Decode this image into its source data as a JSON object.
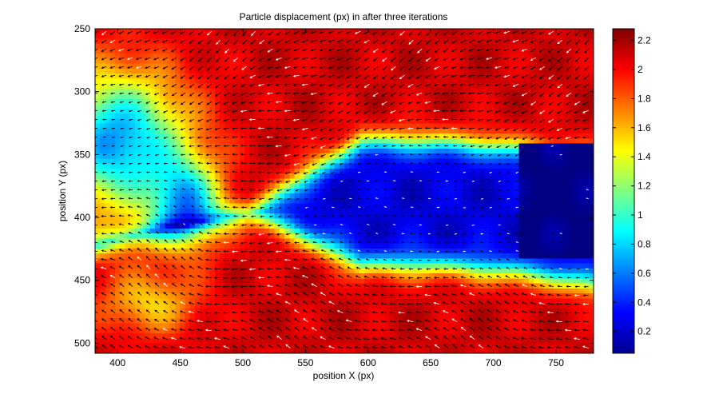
{
  "chart_data": {
    "type": "heatmap",
    "title": "Particle displacement (px) in after three iterations",
    "xlabel": "position X (px)",
    "ylabel": "position Y (px)",
    "xlim": [
      382,
      780
    ],
    "ylim": [
      250,
      508
    ],
    "y_reversed": true,
    "x_ticks": [
      400,
      450,
      500,
      550,
      600,
      650,
      700,
      750
    ],
    "y_ticks": [
      250,
      300,
      350,
      400,
      450,
      500
    ],
    "colorbar": {
      "colormap": "jet",
      "range": [
        0.05,
        2.28
      ],
      "ticks": [
        0.2,
        0.4,
        0.6,
        0.8,
        1,
        1.2,
        1.4,
        1.6,
        1.8,
        2,
        2.2
      ]
    },
    "overlay": "quiver",
    "vector_colors": [
      "#000000",
      "#ffffff"
    ],
    "regions": [
      {
        "value": 2.1,
        "description": "upper band y 250-320"
      },
      {
        "value": 0.25,
        "description": "central blue tongue x 520-780, y 330-440"
      },
      {
        "value": 0.05,
        "description": "right block x 720-780, y 340-435"
      },
      {
        "value": 0.7,
        "description": "left cyan region x 382-470, y 320-410"
      },
      {
        "value": 1.4,
        "description": "yellow front x 420-500"
      },
      {
        "value": 2.1,
        "description": "lower band y 445-508"
      }
    ]
  }
}
